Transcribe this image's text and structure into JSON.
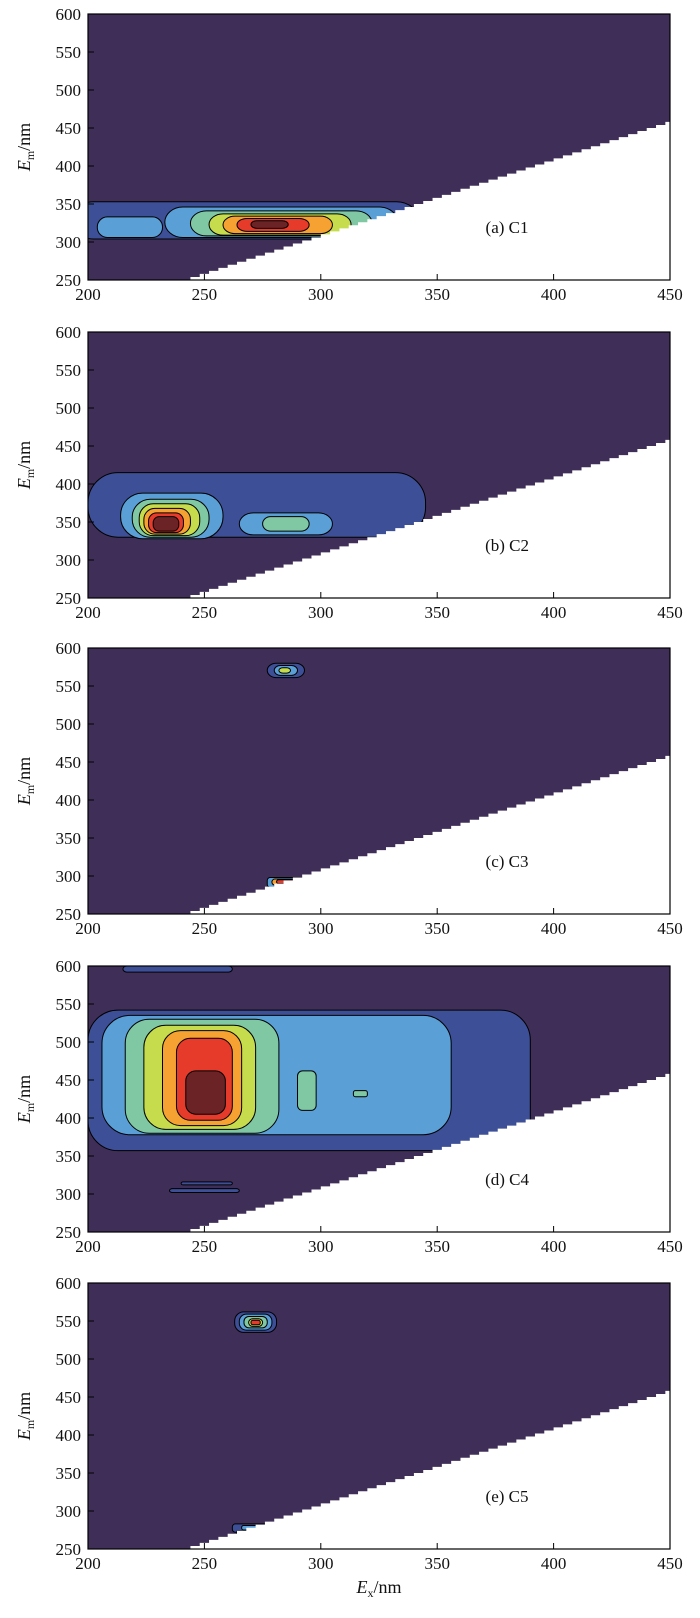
{
  "colors": {
    "background": "#3f2f58",
    "level1": "#3d4f96",
    "level2": "#5aa0d6",
    "level3": "#7fc8a3",
    "level4": "#c7dc4c",
    "level5": "#f6a233",
    "level6": "#e63a2a",
    "level7": "#6b2326",
    "contour_line": "#000000",
    "blank": "#ffffff"
  },
  "chart_data": [
    {
      "type": "heatmap",
      "panel_label": "(a) C1",
      "xlabel_main": "E",
      "xlabel_sub": "x",
      "xlabel_unit": "/nm",
      "ylabel_main": "E",
      "ylabel_sub": "m",
      "ylabel_unit": "/nm",
      "xlim": [
        200,
        450
      ],
      "ylim": [
        250,
        600
      ],
      "xticks": [
        "200",
        "250",
        "300",
        "350",
        "400",
        "450"
      ],
      "yticks": [
        "250",
        "300",
        "350",
        "400",
        "450",
        "500",
        "550",
        "600"
      ],
      "show_xlabel": false,
      "blank_region": "below Em = Ex + 10 nm (first-order Rayleigh scatter)",
      "peaks": [
        {
          "ex": 277,
          "em": 323,
          "level": 7
        },
        {
          "ex": 225,
          "em": 320,
          "level": 2
        }
      ]
    },
    {
      "type": "heatmap",
      "panel_label": "(b) C2",
      "xlabel_main": "E",
      "xlabel_sub": "x",
      "xlabel_unit": "/nm",
      "ylabel_main": "E",
      "ylabel_sub": "m",
      "ylabel_unit": "/nm",
      "xlim": [
        200,
        450
      ],
      "ylim": [
        250,
        600
      ],
      "xticks": [
        "200",
        "250",
        "300",
        "350",
        "400",
        "450"
      ],
      "yticks": [
        "250",
        "300",
        "350",
        "400",
        "450",
        "500",
        "550",
        "600"
      ],
      "show_xlabel": false,
      "peaks": [
        {
          "ex": 233,
          "em": 347,
          "level": 7
        },
        {
          "ex": 284,
          "em": 347,
          "level": 3
        }
      ]
    },
    {
      "type": "heatmap",
      "panel_label": "(c) C3",
      "xlabel_main": "E",
      "xlabel_sub": "x",
      "xlabel_unit": "/nm",
      "ylabel_main": "E",
      "ylabel_sub": "m",
      "ylabel_unit": "/nm",
      "xlim": [
        200,
        450
      ],
      "ylim": [
        250,
        600
      ],
      "xticks": [
        "200",
        "250",
        "300",
        "350",
        "400",
        "450"
      ],
      "yticks": [
        "250",
        "300",
        "350",
        "400",
        "450",
        "500",
        "550",
        "600"
      ],
      "show_xlabel": false,
      "peaks": [
        {
          "ex": 284,
          "em": 570,
          "level": 4
        },
        {
          "ex": 283,
          "em": 293,
          "level": 6
        }
      ]
    },
    {
      "type": "heatmap",
      "panel_label": "(d) C4",
      "xlabel_main": "E",
      "xlabel_sub": "x",
      "xlabel_unit": "/nm",
      "ylabel_main": "E",
      "ylabel_sub": "m",
      "ylabel_unit": "/nm",
      "xlim": [
        200,
        450
      ],
      "ylim": [
        250,
        600
      ],
      "xticks": [
        "200",
        "250",
        "300",
        "350",
        "400",
        "450"
      ],
      "yticks": [
        "250",
        "300",
        "350",
        "400",
        "450",
        "500",
        "550",
        "600"
      ],
      "show_xlabel": false,
      "peaks": [
        {
          "ex": 250,
          "em": 430,
          "level": 7
        },
        {
          "ex": 294,
          "em": 437,
          "level": 3
        },
        {
          "ex": 317,
          "em": 432,
          "level": 3
        }
      ]
    },
    {
      "type": "heatmap",
      "panel_label": "(e) C5",
      "xlabel_main": "E",
      "xlabel_sub": "x",
      "xlabel_unit": "/nm",
      "ylabel_main": "E",
      "ylabel_sub": "m",
      "ylabel_unit": "/nm",
      "xlim": [
        200,
        450
      ],
      "ylim": [
        250,
        600
      ],
      "xticks": [
        "200",
        "250",
        "300",
        "350",
        "400",
        "450"
      ],
      "yticks": [
        "250",
        "300",
        "350",
        "400",
        "450",
        "500",
        "550",
        "600"
      ],
      "show_xlabel": true,
      "peaks": [
        {
          "ex": 272,
          "em": 548,
          "level": 6
        },
        {
          "ex": 270,
          "em": 278,
          "level": 2
        }
      ]
    }
  ]
}
